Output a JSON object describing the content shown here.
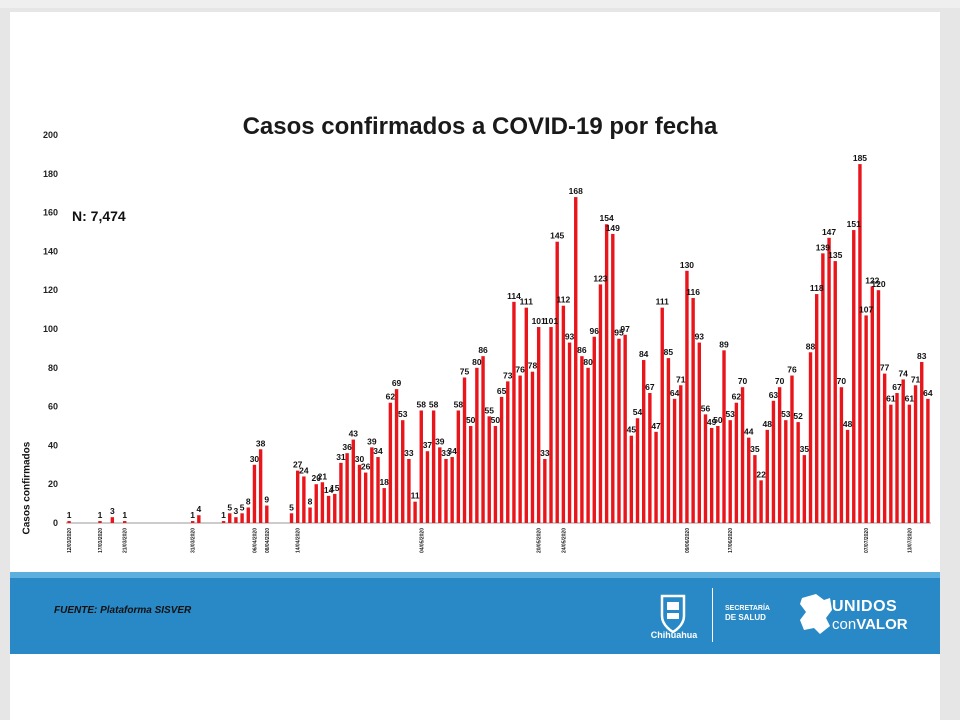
{
  "chart_data": {
    "type": "bar",
    "title": "Casos confirmados a COVID-19 por fecha",
    "annotation": "N: 7,474",
    "xlabel": "",
    "ylabel": "Casos confirmados",
    "ylim": [
      0,
      200
    ],
    "yticks": [
      0,
      20,
      40,
      60,
      80,
      100,
      120,
      140,
      160,
      180,
      200
    ],
    "bar_color": "#e8151b",
    "values": [
      1,
      0,
      0,
      0,
      0,
      1,
      0,
      3,
      0,
      1,
      0,
      0,
      0,
      0,
      0,
      0,
      0,
      0,
      0,
      0,
      1,
      4,
      0,
      0,
      0,
      1,
      5,
      3,
      5,
      8,
      30,
      38,
      9,
      0,
      0,
      0,
      5,
      27,
      24,
      8,
      20,
      21,
      14,
      15,
      31,
      36,
      43,
      30,
      26,
      39,
      34,
      18,
      62,
      69,
      53,
      33,
      11,
      58,
      37,
      58,
      39,
      33,
      34,
      58,
      75,
      50,
      80,
      86,
      55,
      50,
      65,
      73,
      114,
      76,
      111,
      78,
      101,
      33,
      101,
      145,
      112,
      93,
      168,
      86,
      80,
      96,
      123,
      154,
      149,
      95,
      97,
      45,
      54,
      84,
      67,
      47,
      111,
      85,
      64,
      71,
      130,
      116,
      93,
      56,
      49,
      50,
      89,
      53,
      62,
      70,
      44,
      35,
      22,
      48,
      63,
      70,
      53,
      76,
      52,
      35,
      88,
      118,
      139,
      147,
      135,
      70,
      48,
      151,
      185,
      107,
      122,
      120,
      77,
      61,
      67,
      74,
      61,
      71,
      83,
      64
    ],
    "labels": [
      "1",
      "",
      "",
      "",
      "",
      "1",
      "",
      "3",
      "",
      "1",
      "",
      "",
      "",
      "",
      "",
      "",
      "",
      "",
      "",
      "",
      "1",
      "4",
      "",
      "",
      "",
      "1",
      "5",
      "3",
      "5",
      "8",
      "30",
      "38",
      "9",
      "",
      "",
      "",
      "5",
      "27",
      "24",
      "8",
      "20",
      "21",
      "14",
      "15",
      "31",
      "36",
      "43",
      "30",
      "26",
      "39",
      "34",
      "18",
      "62",
      "69",
      "53",
      "33",
      "11",
      "58",
      "37",
      "58",
      "39",
      "33",
      "34",
      "58",
      "75",
      "50",
      "80",
      "86",
      "55",
      "50",
      "65",
      "73",
      "114",
      "76",
      "111",
      "78",
      "101",
      "33",
      "101",
      "145",
      "112",
      "93",
      "168",
      "86",
      "80",
      "96",
      "123",
      "154",
      "149",
      "95",
      "97",
      "45",
      "54",
      "84",
      "67",
      "47",
      "111",
      "85",
      "64",
      "71",
      "130",
      "116",
      "93",
      "56",
      "49",
      "50",
      "89",
      "53",
      "62",
      "70",
      "44",
      "35",
      "22",
      "48",
      "63",
      "70",
      "53",
      "76",
      "52",
      "35",
      "88",
      "118",
      "139",
      "147",
      "135",
      "70",
      "48",
      "151",
      "185",
      "107",
      "122",
      "120",
      "77",
      "61",
      "67",
      "74",
      "61",
      "71",
      "83",
      "64"
    ],
    "xtick_labels": [
      "12/03/2020",
      "",
      "",
      "",
      "",
      "17/03/2020",
      "",
      "",
      "",
      "21/03/2020",
      "",
      "",
      "",
      "",
      "",
      "",
      "",
      "",
      "",
      "",
      "31/03/2020",
      "",
      "",
      "",
      "",
      "",
      "",
      "",
      "",
      "",
      "06/04/2020",
      "",
      "08/04/2020",
      "",
      "",
      "",
      "",
      "14/04/2020",
      "",
      "",
      "",
      "",
      "",
      "",
      "",
      "",
      "",
      "",
      "",
      "",
      "",
      "",
      "",
      "",
      "",
      "",
      "",
      "04/05/2020",
      "",
      "",
      "",
      "",
      "",
      "",
      "",
      "",
      "",
      "",
      "",
      "",
      "",
      "",
      "",
      "",
      "",
      "",
      "20/05/2020",
      "",
      "",
      "",
      "24/05/2020",
      "",
      "",
      "",
      "",
      "",
      "",
      "",
      "",
      "",
      "",
      "",
      "",
      "",
      "",
      "",
      "",
      "",
      "",
      "",
      "09/06/2020",
      "",
      "",
      "",
      "",
      "",
      "",
      "17/06/2020",
      "",
      "",
      "",
      "",
      "",
      "",
      "",
      "",
      "",
      "",
      "",
      "",
      "",
      "",
      "",
      "",
      "",
      "",
      "",
      "",
      "",
      "07/07/2020",
      "",
      "",
      "",
      "",
      "",
      "",
      "13/07/2020",
      "",
      "",
      "",
      "",
      "",
      "",
      "",
      "",
      "",
      "",
      "",
      "27/07/2020",
      "",
      "",
      "",
      "",
      "31/07/2020"
    ]
  },
  "footer": {
    "source": "FUENTE: Plataforma SISVER",
    "state_logo_text": "Chihuahua",
    "secretaria_line1": "SECRETARÍA",
    "secretaria_line2": "DE SALUD",
    "brand_line1": "UNIDOS",
    "brand_line2_a": "con",
    "brand_line2_b": "VALOR"
  },
  "colors": {
    "bar": "#e8151b",
    "footer": "#2989c6",
    "footer_stripe": "#5db0dd"
  }
}
